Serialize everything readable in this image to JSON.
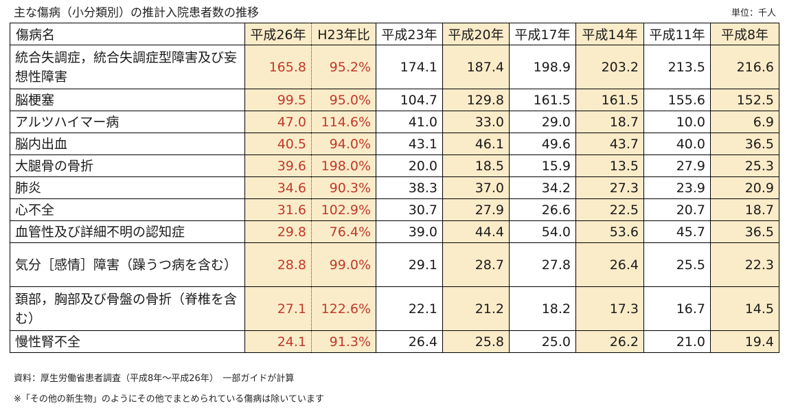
{
  "chart_data": {
    "type": "table",
    "title": "主な傷病（小分類別）の推計入院患者数の推移",
    "unit": "単位：千人",
    "columns": [
      "傷病名",
      "平成26年",
      "H23年比",
      "平成23年",
      "平成20年",
      "平成17年",
      "平成14年",
      "平成11年",
      "平成8年"
    ],
    "rows": [
      {
        "name": "統合失調症，統合失調症型障害及び妄想性障害",
        "values": [
          "165.8",
          "95.2%",
          "174.1",
          "187.4",
          "198.9",
          "203.2",
          "213.5",
          "216.6"
        ]
      },
      {
        "name": "脳梗塞",
        "values": [
          "99.5",
          "95.0%",
          "104.7",
          "129.8",
          "161.5",
          "161.5",
          "155.6",
          "152.5"
        ]
      },
      {
        "name": "アルツハイマー病",
        "values": [
          "47.0",
          "114.6%",
          "41.0",
          "33.0",
          "29.0",
          "18.7",
          "10.0",
          "6.9"
        ]
      },
      {
        "name": "脳内出血",
        "values": [
          "40.5",
          "94.0%",
          "43.1",
          "46.1",
          "49.6",
          "43.7",
          "40.0",
          "36.5"
        ]
      },
      {
        "name": "大腿骨の骨折",
        "values": [
          "39.6",
          "198.0%",
          "20.0",
          "18.5",
          "15.9",
          "13.5",
          "27.9",
          "25.3"
        ]
      },
      {
        "name": "肺炎",
        "values": [
          "34.6",
          "90.3%",
          "38.3",
          "37.0",
          "34.2",
          "27.3",
          "23.9",
          "20.9"
        ]
      },
      {
        "name": "心不全",
        "values": [
          "31.6",
          "102.9%",
          "30.7",
          "27.9",
          "26.6",
          "22.5",
          "20.7",
          "18.7"
        ]
      },
      {
        "name": "血管性及び詳細不明の認知症",
        "values": [
          "29.8",
          "76.4%",
          "39.0",
          "44.4",
          "54.0",
          "53.6",
          "45.7",
          "36.5"
        ]
      },
      {
        "name": "気分［感情］障害（躁うつ病を含む）",
        "values": [
          "28.8",
          "99.0%",
          "29.1",
          "28.7",
          "27.8",
          "26.4",
          "25.5",
          "22.3"
        ]
      },
      {
        "name": "頚部，胸部及び骨盤の骨折（脊椎を含む）",
        "values": [
          "27.1",
          "122.6%",
          "22.1",
          "21.2",
          "18.2",
          "17.3",
          "16.7",
          "14.5"
        ]
      },
      {
        "name": "慢性腎不全",
        "values": [
          "24.1",
          "91.3%",
          "26.4",
          "25.8",
          "25.0",
          "26.2",
          "21.0",
          "19.4"
        ]
      }
    ],
    "highlight_color": "#fbecc9",
    "emphasis_text_color": "#c0392b"
  },
  "footer": {
    "source": "資料：厚生労働省患者調査（平成8年～平成26年）　一部ガイドが計算",
    "note": "※「その他の新生物」のようにその他でまとめられている傷病は除いています"
  }
}
